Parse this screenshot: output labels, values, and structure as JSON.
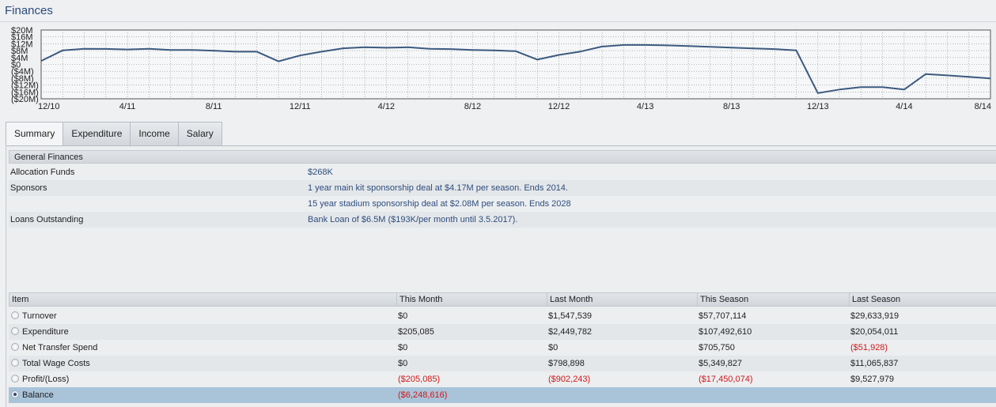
{
  "page": {
    "title": "Finances"
  },
  "chart_data": {
    "type": "line",
    "title": "",
    "y_ticks": [
      "$20M",
      "$16M",
      "$12M",
      "$8M",
      "$4M",
      "$0",
      "($4M)",
      "($8M)",
      "($12M)",
      "($16M)",
      "($20M)"
    ],
    "ylim": [
      -20,
      20
    ],
    "x_labels": [
      "12/10",
      "4/11",
      "8/11",
      "12/11",
      "4/12",
      "8/12",
      "12/12",
      "4/13",
      "8/13",
      "12/13",
      "4/14",
      "8/14"
    ],
    "unit": "$M",
    "grid": true,
    "x": [
      "12/10",
      "1/11",
      "2/11",
      "3/11",
      "4/11",
      "5/11",
      "6/11",
      "7/11",
      "8/11",
      "9/11",
      "10/11",
      "11/11",
      "12/11",
      "1/12",
      "2/12",
      "3/12",
      "4/12",
      "5/12",
      "6/12",
      "7/12",
      "8/12",
      "9/12",
      "10/12",
      "11/12",
      "12/12",
      "1/13",
      "2/13",
      "3/13",
      "4/13",
      "5/13",
      "6/13",
      "7/13",
      "8/13",
      "9/13",
      "10/13",
      "11/13",
      "12/13",
      "1/14",
      "2/14",
      "3/14",
      "4/14",
      "5/14",
      "6/14",
      "7/14",
      "8/14"
    ],
    "series": [
      {
        "values": [
          2.0,
          8.2,
          9.1,
          9.0,
          8.7,
          9.1,
          8.4,
          8.4,
          8.0,
          7.4,
          7.4,
          1.8,
          5.2,
          7.4,
          9.4,
          10.0,
          9.7,
          10.0,
          9.1,
          8.9,
          8.4,
          8.2,
          7.7,
          2.8,
          5.5,
          7.5,
          10.4,
          11.3,
          11.3,
          11.1,
          10.7,
          10.2,
          9.8,
          9.3,
          8.9,
          8.2,
          -16.7,
          -14.6,
          -13.2,
          -13.2,
          -14.6,
          -5.6,
          -6.4,
          -7.2,
          -8.2
        ]
      }
    ]
  },
  "tabs": [
    {
      "label": "Summary",
      "active": true
    },
    {
      "label": "Expenditure"
    },
    {
      "label": "Income"
    },
    {
      "label": "Salary"
    }
  ],
  "general": {
    "header": "General Finances",
    "rows": [
      {
        "label": "Allocation Funds",
        "value": "$268K"
      },
      {
        "label": "Sponsors",
        "value": "1 year main kit sponsorship deal at $4.17M per season. Ends 2014."
      },
      {
        "label": "",
        "value": "15 year stadium sponsorship deal at $2.08M per season. Ends 2028"
      },
      {
        "label": "Loans Outstanding",
        "value": "Bank Loan of $6.5M ($193K/per month until 3.5.2017)."
      }
    ]
  },
  "table": {
    "headers": [
      "Item",
      "This Month",
      "Last Month",
      "This Season",
      "Last Season"
    ],
    "rows": [
      {
        "item": "Turnover",
        "cells": [
          "$0",
          "$1,547,539",
          "$57,707,114",
          "$29,633,919"
        ],
        "neg": [
          false,
          false,
          false,
          false
        ]
      },
      {
        "item": "Expenditure",
        "cells": [
          "$205,085",
          "$2,449,782",
          "$107,492,610",
          "$20,054,011"
        ],
        "neg": [
          false,
          false,
          false,
          false
        ]
      },
      {
        "item": "Net Transfer Spend",
        "cells": [
          "$0",
          "$0",
          "$705,750",
          "($51,928)"
        ],
        "neg": [
          false,
          false,
          false,
          true
        ]
      },
      {
        "item": "Total Wage Costs",
        "cells": [
          "$0",
          "$798,898",
          "$5,349,827",
          "$11,065,837"
        ],
        "neg": [
          false,
          false,
          false,
          false
        ]
      },
      {
        "item": "Profit/(Loss)",
        "cells": [
          "($205,085)",
          "($902,243)",
          "($17,450,074)",
          "$9,527,979"
        ],
        "neg": [
          true,
          true,
          true,
          false
        ]
      },
      {
        "item": "Balance",
        "cells": [
          "($6,248,616)",
          "",
          "",
          ""
        ],
        "neg": [
          true,
          false,
          false,
          false
        ],
        "selected": true
      }
    ]
  },
  "colors": {
    "line": "#3c5a80",
    "negative": "#d01818",
    "link": "#2d4d7d",
    "selected_row": "#a9c3d9"
  }
}
